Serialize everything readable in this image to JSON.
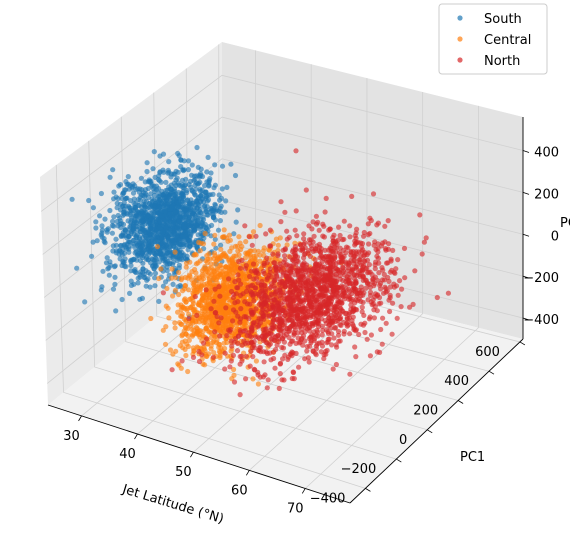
{
  "chart_data": {
    "type": "scatter",
    "projection": "3d",
    "xlabel": "Jet Latitude (°N)",
    "ylabel": "PC1",
    "zlabel": "PC",
    "xlim": [
      24,
      78
    ],
    "ylim": [
      -500,
      620
    ],
    "zlim": [
      -500,
      560
    ],
    "xticks": [
      30,
      40,
      50,
      60,
      70
    ],
    "yticks": [
      -400,
      -200,
      0,
      200,
      400,
      600
    ],
    "zticks": [
      -400,
      -200,
      0,
      200,
      400
    ],
    "grid": true,
    "legend": {
      "position": "top-right"
    },
    "series": [
      {
        "name": "South",
        "color": "#1f77b4",
        "approx_center": {
          "lat": 33,
          "pc1": -80,
          "pc": 130
        },
        "approx_spread": {
          "lat": 3.5,
          "pc1": 110,
          "pc": 90
        },
        "points": 1400
      },
      {
        "name": "Central",
        "color": "#ff7f0e",
        "approx_center": {
          "lat": 44,
          "pc1": -40,
          "pc": -160
        },
        "approx_spread": {
          "lat": 3.5,
          "pc1": 110,
          "pc": 95
        },
        "points": 1400
      },
      {
        "name": "North",
        "color": "#d62728",
        "approx_center": {
          "lat": 56,
          "pc1": 30,
          "pc": -80
        },
        "approx_spread": {
          "lat": 6,
          "pc1": 150,
          "pc": 110
        },
        "points": 1600
      }
    ]
  }
}
